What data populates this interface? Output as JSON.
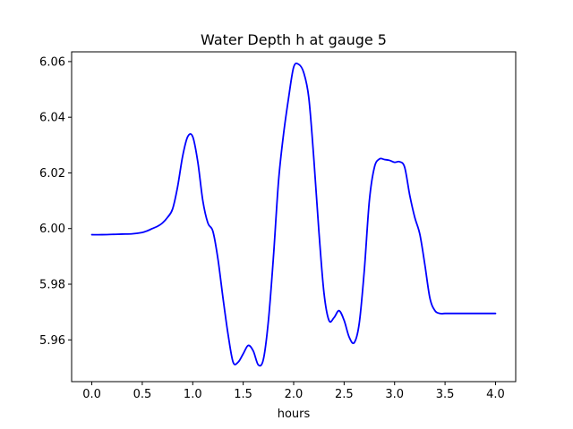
{
  "chart_data": {
    "type": "line",
    "title": "Water Depth h at gauge 5",
    "xlabel": "hours",
    "ylabel": "",
    "xlim": [
      -0.2,
      4.2
    ],
    "ylim": [
      5.945,
      6.0635
    ],
    "xticks": [
      0.0,
      0.5,
      1.0,
      1.5,
      2.0,
      2.5,
      3.0,
      3.5,
      4.0
    ],
    "xtick_labels": [
      "0.0",
      "0.5",
      "1.0",
      "1.5",
      "2.0",
      "2.5",
      "3.0",
      "3.5",
      "4.0"
    ],
    "yticks": [
      5.96,
      5.98,
      6.0,
      6.02,
      6.04,
      6.06
    ],
    "ytick_labels": [
      "5.96",
      "5.98",
      "6.00",
      "6.02",
      "6.04",
      "6.06"
    ],
    "grid": false,
    "legend": "none",
    "series": [
      {
        "color": "#0000ff",
        "x": [
          0.0,
          0.1,
          0.2,
          0.3,
          0.4,
          0.5,
          0.55,
          0.6,
          0.65,
          0.7,
          0.75,
          0.8,
          0.85,
          0.9,
          0.95,
          1.0,
          1.05,
          1.1,
          1.15,
          1.2,
          1.25,
          1.3,
          1.35,
          1.4,
          1.45,
          1.5,
          1.55,
          1.6,
          1.65,
          1.7,
          1.75,
          1.8,
          1.85,
          1.9,
          1.95,
          2.0,
          2.05,
          2.1,
          2.15,
          2.2,
          2.25,
          2.3,
          2.35,
          2.4,
          2.45,
          2.5,
          2.55,
          2.6,
          2.65,
          2.7,
          2.75,
          2.8,
          2.85,
          2.9,
          2.95,
          3.0,
          3.05,
          3.1,
          3.15,
          3.2,
          3.25,
          3.3,
          3.35,
          3.4,
          3.45,
          3.5,
          3.55,
          3.6,
          3.65,
          3.7,
          3.75,
          3.8,
          3.85,
          3.9,
          3.95,
          4.0
        ],
        "y": [
          5.9978,
          5.9978,
          5.9979,
          5.998,
          5.9981,
          5.9986,
          5.9992,
          6.0,
          6.0008,
          6.002,
          6.004,
          6.007,
          6.015,
          6.026,
          6.033,
          6.033,
          6.024,
          6.01,
          6.002,
          5.999,
          5.989,
          5.975,
          5.962,
          5.952,
          5.952,
          5.955,
          5.958,
          5.956,
          5.951,
          5.953,
          5.967,
          5.99,
          6.017,
          6.034,
          6.047,
          6.058,
          6.059,
          6.056,
          6.047,
          6.025,
          5.999,
          5.977,
          5.967,
          5.968,
          5.9705,
          5.967,
          5.961,
          5.959,
          5.966,
          5.985,
          6.01,
          6.022,
          6.025,
          6.0248,
          6.0245,
          6.0238,
          6.024,
          6.022,
          6.012,
          6.004,
          5.998,
          5.987,
          5.975,
          5.9705,
          5.9695,
          5.9695,
          5.9695,
          5.9695,
          5.9695,
          5.9695,
          5.9695,
          5.9695,
          5.9695,
          5.9695,
          5.9695,
          5.9695
        ]
      }
    ]
  }
}
